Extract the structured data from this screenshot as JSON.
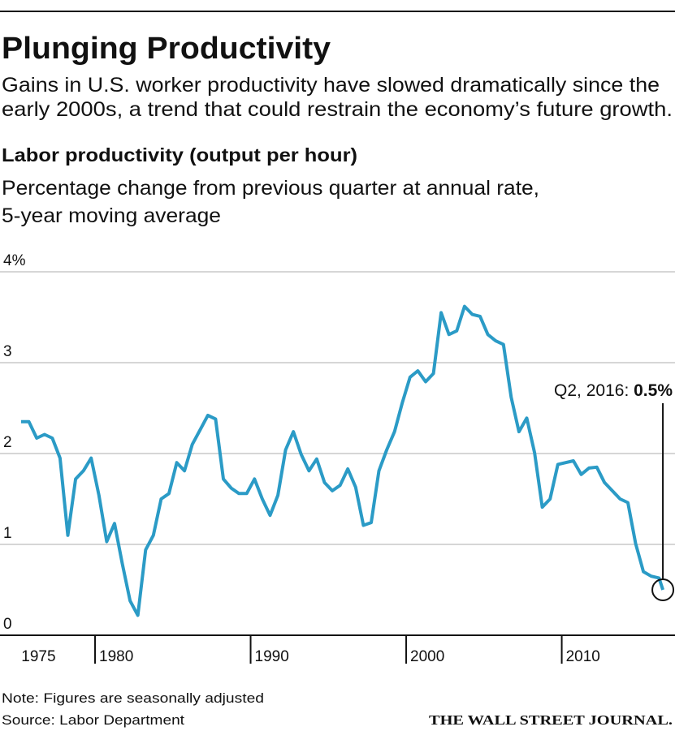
{
  "chart_data": {
    "type": "line",
    "title": "Plunging Productivity",
    "subtitle": [
      "Gains in U.S. worker productivity have slowed dramatically since the",
      "early 2000s, a trend that could restrain the economy’s future growth."
    ],
    "chart_title": "Labor productivity (output per hour)",
    "chart_subtitle": [
      "Percentage change from previous quarter at annual rate,",
      "5-year moving average"
    ],
    "annotation": {
      "label": "Q2, 2016:",
      "value_label": "0.5%"
    },
    "note": "Note: Figures are seasonally adjusted",
    "source": "Source: Labor Department",
    "credit": "THE WALL STREET JOURNAL.",
    "color": "#2b9bc6",
    "grid": true,
    "xlim": [
      1973.89,
      2017.28
    ],
    "xticks": [
      1975,
      1980,
      1990,
      2000,
      2010
    ],
    "ylim": [
      0,
      4
    ],
    "yticks": [
      0,
      1,
      2,
      3,
      {
        "value": 4,
        "label": "4%"
      }
    ],
    "x": [
      1975.25,
      1975.75,
      1976.25,
      1976.75,
      1977.25,
      1977.75,
      1978.25,
      1978.75,
      1979.25,
      1979.75,
      1980.25,
      1980.75,
      1981.25,
      1981.75,
      1982.25,
      1982.75,
      1983.25,
      1983.75,
      1984.25,
      1984.75,
      1985.25,
      1985.75,
      1986.25,
      1986.75,
      1987.25,
      1987.75,
      1988.25,
      1988.75,
      1989.25,
      1989.75,
      1990.25,
      1990.75,
      1991.25,
      1991.75,
      1992.25,
      1992.75,
      1993.25,
      1993.75,
      1994.25,
      1994.75,
      1995.25,
      1995.75,
      1996.25,
      1996.75,
      1997.25,
      1997.75,
      1998.25,
      1998.75,
      1999.25,
      1999.75,
      2000.25,
      2000.75,
      2001.25,
      2001.75,
      2002.25,
      2002.75,
      2003.25,
      2003.75,
      2004.25,
      2004.75,
      2005.25,
      2005.75,
      2006.25,
      2006.75,
      2007.25,
      2007.75,
      2008.25,
      2008.75,
      2009.25,
      2009.75,
      2010.25,
      2010.75,
      2011.25,
      2011.75,
      2012.25,
      2012.75,
      2013.25,
      2013.75,
      2014.25,
      2014.75,
      2015.25,
      2015.75,
      2016.25,
      2016.5
    ],
    "values": [
      2.35,
      2.35,
      2.17,
      2.21,
      2.17,
      1.95,
      1.1,
      1.72,
      1.81,
      1.95,
      1.54,
      1.03,
      1.23,
      0.79,
      0.38,
      0.22,
      0.94,
      1.1,
      1.5,
      1.56,
      1.9,
      1.81,
      2.1,
      2.26,
      2.42,
      2.38,
      1.72,
      1.62,
      1.56,
      1.56,
      1.72,
      1.5,
      1.32,
      1.54,
      2.04,
      2.24,
      1.99,
      1.81,
      1.94,
      1.68,
      1.59,
      1.65,
      1.83,
      1.63,
      1.21,
      1.24,
      1.81,
      2.04,
      2.24,
      2.56,
      2.84,
      2.91,
      2.79,
      2.88,
      3.55,
      3.31,
      3.35,
      3.62,
      3.53,
      3.51,
      3.31,
      3.24,
      3.2,
      2.62,
      2.24,
      2.39,
      2.01,
      1.41,
      1.5,
      1.88,
      1.9,
      1.92,
      1.77,
      1.84,
      1.85,
      1.68,
      1.59,
      1.5,
      1.46,
      1.01,
      0.7,
      0.65,
      0.63,
      0.5
    ]
  }
}
